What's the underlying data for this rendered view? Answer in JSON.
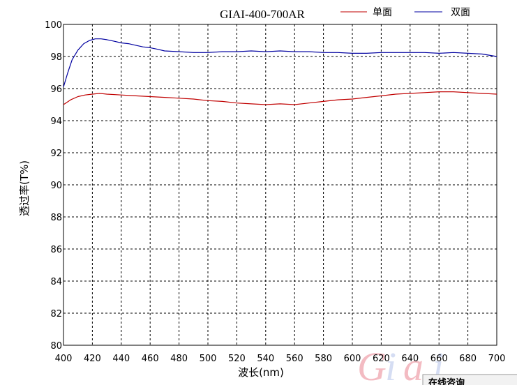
{
  "chart_data": {
    "type": "line",
    "title": "GIAI-400-700AR",
    "xlabel": "波长(nm)",
    "ylabel": "透过率(T%)",
    "xlim": [
      400,
      700
    ],
    "ylim": [
      80,
      100
    ],
    "x_ticks": [
      400,
      420,
      440,
      460,
      480,
      500,
      520,
      540,
      560,
      580,
      600,
      620,
      640,
      660,
      680,
      700
    ],
    "y_ticks": [
      80,
      82,
      84,
      86,
      88,
      90,
      92,
      94,
      96,
      98,
      100
    ],
    "grid": true,
    "legend_position": "top-right",
    "series": [
      {
        "name": "单面",
        "color": "#c00000",
        "x": [
          400,
          405,
          410,
          415,
          420,
          425,
          430,
          440,
          450,
          460,
          470,
          480,
          490,
          500,
          510,
          520,
          530,
          540,
          550,
          560,
          570,
          580,
          590,
          600,
          610,
          620,
          630,
          640,
          650,
          660,
          670,
          680,
          690,
          700
        ],
        "y": [
          95.0,
          95.3,
          95.5,
          95.6,
          95.65,
          95.7,
          95.65,
          95.6,
          95.55,
          95.5,
          95.45,
          95.4,
          95.35,
          95.25,
          95.2,
          95.1,
          95.05,
          95.0,
          95.05,
          95.0,
          95.1,
          95.2,
          95.3,
          95.35,
          95.45,
          95.55,
          95.65,
          95.7,
          95.75,
          95.8,
          95.8,
          95.75,
          95.7,
          95.65
        ]
      },
      {
        "name": "双面",
        "color": "#0000a0",
        "x": [
          400,
          403,
          406,
          410,
          414,
          418,
          422,
          426,
          430,
          435,
          440,
          445,
          450,
          455,
          460,
          465,
          470,
          480,
          490,
          500,
          510,
          520,
          530,
          540,
          550,
          560,
          570,
          580,
          590,
          600,
          610,
          620,
          630,
          640,
          650,
          660,
          670,
          680,
          690,
          700
        ],
        "y": [
          96.1,
          97.0,
          97.8,
          98.4,
          98.8,
          99.0,
          99.1,
          99.1,
          99.05,
          98.95,
          98.85,
          98.8,
          98.7,
          98.6,
          98.55,
          98.45,
          98.35,
          98.3,
          98.25,
          98.25,
          98.3,
          98.3,
          98.35,
          98.3,
          98.35,
          98.3,
          98.3,
          98.25,
          98.25,
          98.2,
          98.2,
          98.25,
          98.25,
          98.25,
          98.25,
          98.2,
          98.25,
          98.2,
          98.15,
          98.0
        ]
      }
    ]
  },
  "overlay": {
    "footer_tab": "在线咨询"
  }
}
